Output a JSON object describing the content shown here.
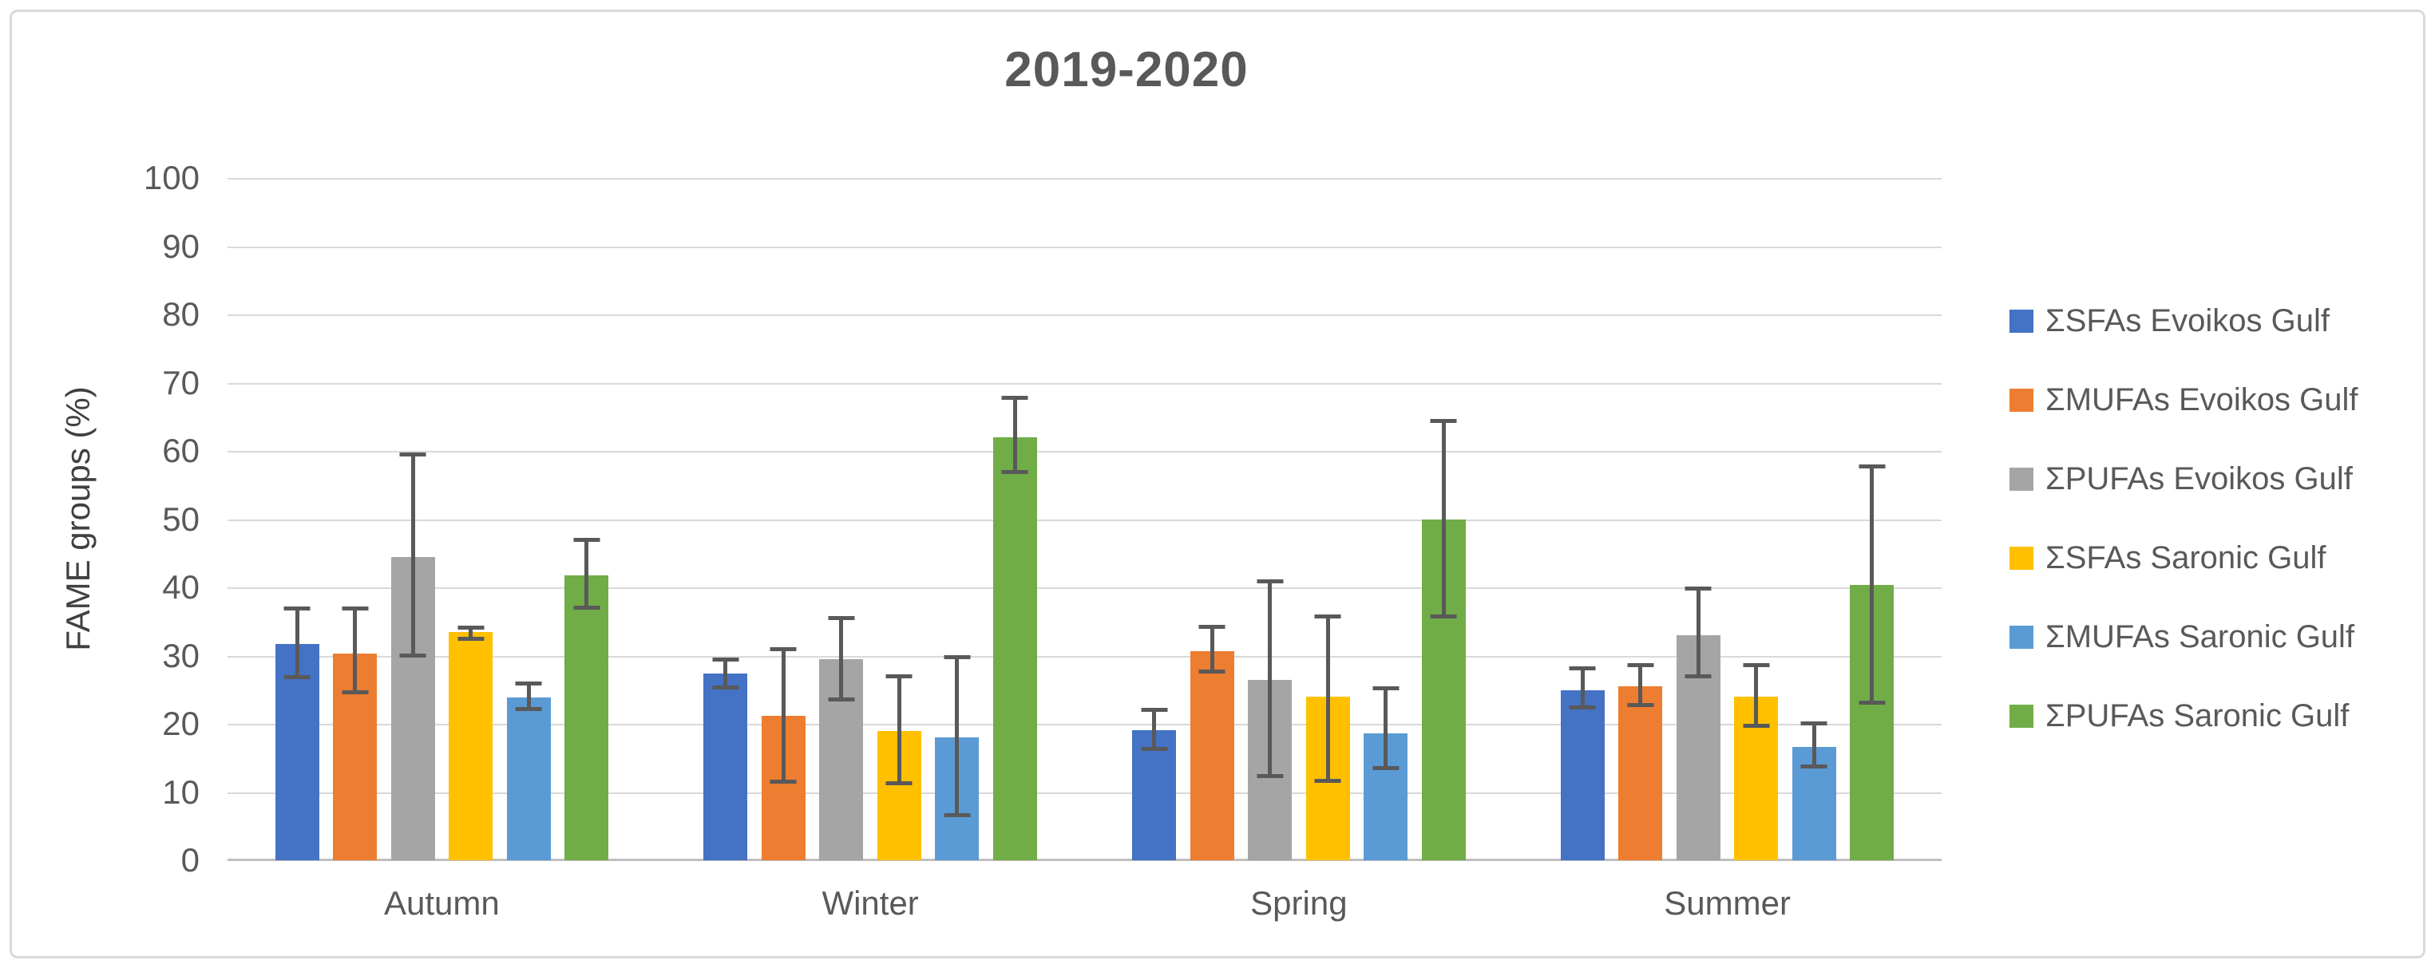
{
  "chart_data": {
    "type": "bar",
    "title": "2019-2020",
    "ylabel": "FAME groups (%)",
    "xlabel": "",
    "ylim": [
      0,
      100
    ],
    "ytick_step": 10,
    "yticks": [
      0,
      10,
      20,
      30,
      40,
      50,
      60,
      70,
      80,
      90,
      100
    ],
    "grid": true,
    "legend_position": "right",
    "error_bars": true,
    "categories": [
      "Autumn",
      "Winter",
      "Spring",
      "Summer"
    ],
    "series": [
      {
        "name": "ΣSFAs Evoikos Gulf",
        "color": "#4472C4",
        "values": [
          31.7,
          27.4,
          19.1,
          24.9
        ],
        "err_lo": [
          26.8,
          25.3,
          16.3,
          22.3
        ],
        "err_hi": [
          37.0,
          29.5,
          22.1,
          28.2
        ]
      },
      {
        "name": "ΣMUFAs Evoikos Gulf",
        "color": "#ED7D31",
        "values": [
          30.3,
          21.2,
          30.7,
          25.5
        ],
        "err_lo": [
          24.6,
          11.5,
          27.6,
          22.7
        ],
        "err_hi": [
          37.0,
          31.0,
          34.3,
          28.6
        ]
      },
      {
        "name": "ΣPUFAs Evoikos Gulf",
        "color": "#A5A5A5",
        "values": [
          44.5,
          29.5,
          26.4,
          33.0
        ],
        "err_lo": [
          30.0,
          23.5,
          12.3,
          26.9
        ],
        "err_hi": [
          59.5,
          35.5,
          40.9,
          39.9
        ]
      },
      {
        "name": "ΣSFAs Saronic Gulf",
        "color": "#FFC000",
        "values": [
          33.4,
          19.0,
          24.0,
          24.0
        ],
        "err_lo": [
          32.4,
          11.2,
          11.6,
          19.6
        ],
        "err_hi": [
          34.2,
          27.0,
          35.8,
          28.6
        ]
      },
      {
        "name": "ΣMUFAs Saronic Gulf",
        "color": "#5B9BD5",
        "values": [
          23.9,
          18.0,
          18.6,
          16.6
        ],
        "err_lo": [
          22.1,
          6.5,
          13.4,
          13.7
        ],
        "err_hi": [
          26.0,
          29.8,
          25.3,
          20.1
        ]
      },
      {
        "name": "ΣPUFAs Saronic Gulf",
        "color": "#70AD47",
        "values": [
          41.8,
          62.0,
          49.9,
          40.3
        ],
        "err_lo": [
          37.0,
          56.8,
          35.7,
          23.0
        ],
        "err_hi": [
          47.0,
          67.8,
          64.5,
          57.8
        ]
      }
    ],
    "style": {
      "text_color": "#595959",
      "title_color": "#595959",
      "grid_color": "#D9D9D9",
      "axis_line_color": "#BFBFBF",
      "error_bar_color": "#595959",
      "frame_border_color": "#D9D9D9",
      "background": "#FFFFFF"
    }
  }
}
